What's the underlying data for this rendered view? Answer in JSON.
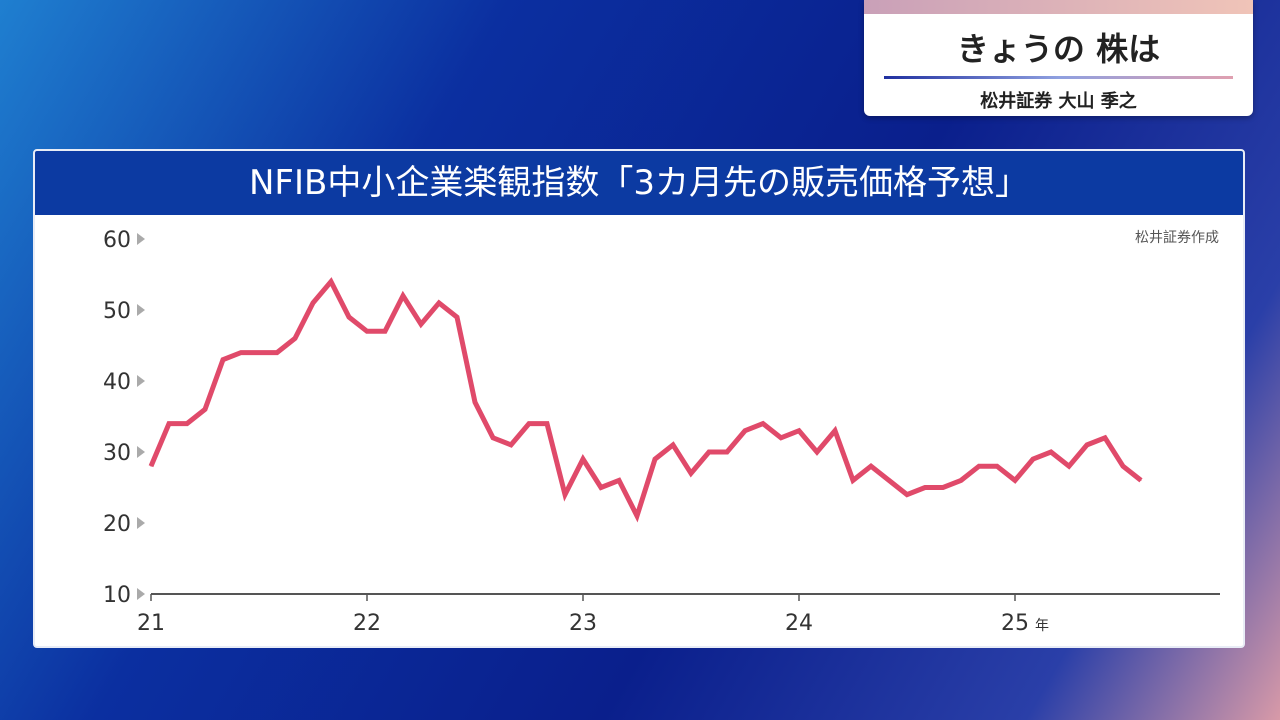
{
  "header_card": {
    "title": "きょうの 株は",
    "subtitle": "松井証券 大山 季之"
  },
  "chart_data": {
    "type": "line",
    "title": "NFIB中小企業楽観指数「3カ月先の販売価格予想」",
    "source": "松井証券作成",
    "xlabel": "",
    "ylabel": "",
    "x_tick_labels": [
      "21",
      "22",
      "23",
      "24",
      "25"
    ],
    "x_unit": "年",
    "y_ticks": [
      10,
      20,
      30,
      40,
      50,
      60
    ],
    "ylim": [
      10,
      60
    ],
    "x_range": [
      "2021-01",
      "2025-12"
    ],
    "grid": false,
    "line_color": "#e04a6a",
    "series": [
      {
        "start": "2021-01",
        "frequency": "monthly",
        "values": [
          28,
          34,
          34,
          36,
          43,
          44,
          44,
          44,
          46,
          51,
          54,
          49,
          47,
          47,
          52,
          48,
          51,
          49,
          37,
          32,
          31,
          34,
          34,
          24,
          29,
          25,
          26,
          21,
          29,
          31,
          27,
          30,
          30,
          33,
          34,
          32,
          33,
          30,
          33,
          26,
          28,
          26,
          24,
          25,
          25,
          26,
          28,
          28,
          26,
          29,
          30,
          28,
          31,
          32,
          28,
          26
        ]
      }
    ]
  }
}
